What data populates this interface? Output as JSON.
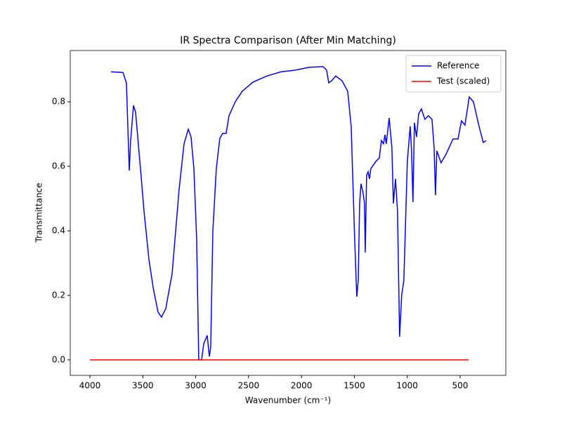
{
  "chart_data": {
    "type": "line",
    "title": "IR Spectra Comparison (After Min Matching)",
    "x_label": "Wavenumber (cm⁻¹)",
    "y_label": "Transmittance",
    "xlim": [
      4186,
      68
    ],
    "ylim": [
      -0.048,
      0.959
    ],
    "xticks": [
      4000,
      3500,
      3000,
      2500,
      2000,
      1500,
      1000,
      500
    ],
    "yticks": [
      {
        "value": 0,
        "label": "0.0"
      },
      0.2,
      0.4,
      0.6,
      0.8
    ],
    "legend": "upper right",
    "series": [
      {
        "name": "Reference",
        "color": "#0000ff",
        "x": [
          3801,
          3688,
          3655,
          3628,
          3615,
          3588,
          3568,
          3522,
          3489,
          3442,
          3402,
          3356,
          3323,
          3283,
          3223,
          3157,
          3110,
          3070,
          3044,
          3017,
          2991,
          2971,
          2944,
          2924,
          2891,
          2871,
          2858,
          2838,
          2805,
          2772,
          2745,
          2712,
          2685,
          2626,
          2559,
          2459,
          2327,
          2194,
          2061,
          1928,
          1795,
          1762,
          1742,
          1716,
          1676,
          1616,
          1563,
          1530,
          1497,
          1477,
          1463,
          1450,
          1437,
          1417,
          1404,
          1397,
          1384,
          1370,
          1357,
          1344,
          1297,
          1264,
          1244,
          1224,
          1211,
          1198,
          1171,
          1145,
          1131,
          1111,
          1092,
          1072,
          1052,
          1032,
          999,
          972,
          959,
          946,
          932,
          912,
          892,
          866,
          833,
          800,
          766,
          746,
          733,
          720,
          680,
          634,
          567,
          520,
          487,
          454,
          414,
          374,
          321,
          281,
          254
        ],
        "values": [
          0.893,
          0.891,
          0.859,
          0.587,
          0.68,
          0.789,
          0.767,
          0.593,
          0.463,
          0.311,
          0.224,
          0.148,
          0.133,
          0.159,
          0.267,
          0.528,
          0.67,
          0.715,
          0.691,
          0.593,
          0.376,
          0,
          0,
          0.05,
          0.076,
          0.011,
          0.039,
          0.398,
          0.593,
          0.687,
          0.702,
          0.702,
          0.757,
          0.8,
          0.833,
          0.861,
          0.88,
          0.893,
          0.898,
          0.907,
          0.909,
          0.898,
          0.859,
          0.865,
          0.88,
          0.865,
          0.833,
          0.724,
          0.376,
          0.196,
          0.246,
          0.485,
          0.546,
          0.517,
          0.485,
          0.333,
          0.572,
          0.583,
          0.561,
          0.593,
          0.615,
          0.626,
          0.68,
          0.67,
          0.698,
          0.67,
          0.75,
          0.659,
          0.485,
          0.561,
          0.463,
          0.072,
          0.202,
          0.246,
          0.615,
          0.724,
          0.648,
          0.489,
          0.735,
          0.691,
          0.763,
          0.778,
          0.746,
          0.757,
          0.746,
          0.659,
          0.511,
          0.648,
          0.611,
          0.637,
          0.685,
          0.685,
          0.741,
          0.728,
          0.815,
          0.8,
          0.724,
          0.674,
          0.68
        ]
      },
      {
        "name": "Test (scaled)",
        "color": "#ff0000",
        "x": [
          4000,
          420
        ],
        "values": [
          0,
          0
        ]
      }
    ]
  }
}
